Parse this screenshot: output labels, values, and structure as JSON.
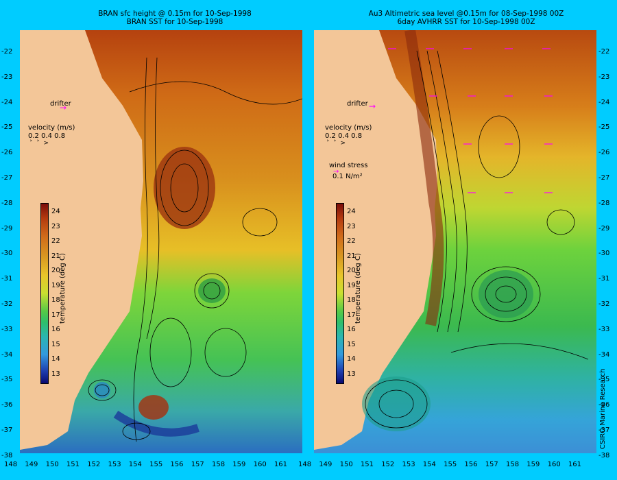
{
  "left_panel": {
    "title_line1": "BRAN sfc height @ 0.15m  for 10-Sep-1998",
    "title_line2": "BRAN SST for 10-Sep-1998",
    "drifter_label": "drifter",
    "velocity_label": "velocity (m/s)",
    "velocity_scale": "0.2 0.4 0.8"
  },
  "right_panel": {
    "title_line1": "Au3 Altimetric sea level  @0.15m  for 08-Sep-1998 00Z",
    "title_line2": "6day AVHRR SST for 10-Sep-1998 00Z",
    "drifter_label": "drifter",
    "velocity_label": "velocity (m/s)",
    "velocity_scale": "0.2 0.4 0.8",
    "wind_label": "wind stress",
    "wind_value": "0.1 N/m²"
  },
  "colorbar": {
    "title": "temperature (deg C)",
    "ticks": [
      "24",
      "23",
      "22",
      "21",
      "20",
      "19",
      "18",
      "17",
      "16",
      "15",
      "14",
      "13"
    ]
  },
  "axes": {
    "lat_ticks": [
      "-22",
      "-23",
      "-24",
      "-25",
      "-26",
      "-27",
      "-28",
      "-29",
      "-30",
      "-31",
      "-32",
      "-33",
      "-34",
      "-35",
      "-36",
      "-37",
      "-38"
    ],
    "lon_ticks": [
      "148",
      "149",
      "150",
      "151",
      "152",
      "153",
      "154",
      "155",
      "156",
      "157",
      "158",
      "159",
      "160",
      "161"
    ]
  },
  "credit": "CSIRO Marine Research",
  "colors": {
    "background": "#00ccff",
    "land": "#f3c698",
    "drifter": "#ff00ff"
  }
}
